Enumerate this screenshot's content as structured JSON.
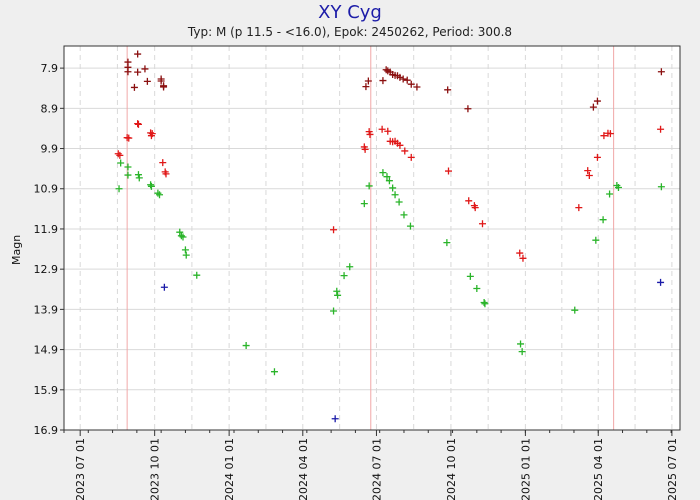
{
  "chart_data": {
    "type": "scatter",
    "title": "XY Cyg",
    "subtitle": "Typ: M (p 11.5 - <16.0), Epok: 2450262, Period: 300.8",
    "ylabel": "Magn",
    "xlabel": "",
    "ylim": [
      7.35,
      16.9
    ],
    "y_inverted": true,
    "y_ticks": [
      7.9,
      8.9,
      9.9,
      10.9,
      11.9,
      12.9,
      13.9,
      14.9,
      15.9,
      16.9
    ],
    "y_tick_labels": [
      "7.9",
      "8.9",
      "9.9",
      "10.9",
      "11.9",
      "12.9",
      "13.9",
      "14.9",
      "15.9",
      "16.9"
    ],
    "xlim": [
      "2023-06-11",
      "2025-07-11"
    ],
    "x_ticks": [
      "2023-07-01",
      "2023-10-01",
      "2024-01-01",
      "2024-04-01",
      "2024-07-01",
      "2024-10-01",
      "2025-01-01",
      "2025-04-01",
      "2025-07-01"
    ],
    "x_tick_labels": [
      "2023 07 01",
      "2023 10 01",
      "2024 01 01",
      "2024 04 01",
      "2024 07 01",
      "2024 10 01",
      "2025 01 01",
      "2025 04 01",
      "2025 07 01"
    ],
    "x_minor_interval_days": 30,
    "grid": true,
    "maxima_lines": [
      "2023-08-28",
      "2024-06-24",
      "2025-04-20"
    ],
    "colors": {
      "background": "#efefef",
      "plot_bg": "#ffffff",
      "grid": "#d9d9d9",
      "maxima_line": "#f1a8a8",
      "title": "#1c1ca8"
    },
    "series": [
      {
        "color": "#8b1010",
        "points": [
          [
            "2023-08-29",
            7.75
          ],
          [
            "2023-08-29",
            7.88
          ],
          [
            "2023-08-29",
            7.99
          ],
          [
            "2023-09-06",
            8.38
          ],
          [
            "2023-09-10",
            7.55
          ],
          [
            "2023-09-10",
            8.0
          ],
          [
            "2023-09-19",
            7.92
          ],
          [
            "2023-09-22",
            8.23
          ],
          [
            "2023-10-09",
            8.17
          ],
          [
            "2023-10-09",
            8.22
          ],
          [
            "2023-10-12",
            8.34
          ],
          [
            "2023-10-12",
            8.37
          ],
          [
            "2024-06-18",
            8.36
          ],
          [
            "2024-06-21",
            8.22
          ],
          [
            "2024-07-09",
            8.21
          ],
          [
            "2024-07-13",
            7.94
          ],
          [
            "2024-07-15",
            7.97
          ],
          [
            "2024-07-18",
            8.0
          ],
          [
            "2024-07-21",
            8.06
          ],
          [
            "2024-07-24",
            8.08
          ],
          [
            "2024-07-27",
            8.09
          ],
          [
            "2024-07-30",
            8.13
          ],
          [
            "2024-08-03",
            8.17
          ],
          [
            "2024-08-08",
            8.2
          ],
          [
            "2024-08-13",
            8.3
          ],
          [
            "2024-08-20",
            8.37
          ],
          [
            "2024-09-27",
            8.44
          ],
          [
            "2024-10-22",
            8.91
          ],
          [
            "2025-03-26",
            8.87
          ],
          [
            "2025-03-31",
            8.72
          ],
          [
            "2025-06-18",
            7.99
          ]
        ]
      },
      {
        "color": "#e01818",
        "points": [
          [
            "2023-08-17",
            10.03
          ],
          [
            "2023-08-19",
            10.07
          ],
          [
            "2023-08-28",
            9.63
          ],
          [
            "2023-08-30",
            9.64
          ],
          [
            "2023-09-10",
            9.28
          ],
          [
            "2023-09-11",
            9.3
          ],
          [
            "2023-09-26",
            9.51
          ],
          [
            "2023-09-27",
            9.58
          ],
          [
            "2023-09-28",
            9.53
          ],
          [
            "2023-10-11",
            10.25
          ],
          [
            "2023-10-14",
            10.48
          ],
          [
            "2023-10-15",
            10.53
          ],
          [
            "2024-05-09",
            11.92
          ],
          [
            "2024-06-16",
            9.86
          ],
          [
            "2024-06-17",
            9.92
          ],
          [
            "2024-06-22",
            9.48
          ],
          [
            "2024-06-23",
            9.55
          ],
          [
            "2024-07-08",
            9.42
          ],
          [
            "2024-07-15",
            9.47
          ],
          [
            "2024-07-18",
            9.72
          ],
          [
            "2024-07-21",
            9.73
          ],
          [
            "2024-07-24",
            9.72
          ],
          [
            "2024-07-27",
            9.77
          ],
          [
            "2024-07-30",
            9.82
          ],
          [
            "2024-08-05",
            9.96
          ],
          [
            "2024-08-13",
            10.12
          ],
          [
            "2024-09-28",
            10.46
          ],
          [
            "2024-10-23",
            11.2
          ],
          [
            "2024-10-30",
            11.32
          ],
          [
            "2024-10-31",
            11.37
          ],
          [
            "2024-11-09",
            11.77
          ],
          [
            "2024-12-25",
            12.5
          ],
          [
            "2024-12-29",
            12.63
          ],
          [
            "2025-03-08",
            11.37
          ],
          [
            "2025-03-19",
            10.45
          ],
          [
            "2025-03-21",
            10.57
          ],
          [
            "2025-03-31",
            10.12
          ],
          [
            "2025-04-08",
            9.58
          ],
          [
            "2025-04-13",
            9.52
          ],
          [
            "2025-04-16",
            9.53
          ],
          [
            "2025-06-17",
            9.42
          ]
        ]
      },
      {
        "color": "#2ab42a",
        "points": [
          [
            "2023-08-18",
            10.9
          ],
          [
            "2023-08-20",
            10.26
          ],
          [
            "2023-08-29",
            10.36
          ],
          [
            "2023-08-29",
            10.56
          ],
          [
            "2023-09-11",
            10.55
          ],
          [
            "2023-09-12",
            10.63
          ],
          [
            "2023-09-26",
            10.8
          ],
          [
            "2023-09-27",
            10.84
          ],
          [
            "2023-10-05",
            11.01
          ],
          [
            "2023-10-07",
            11.05
          ],
          [
            "2023-11-01",
            11.98
          ],
          [
            "2023-11-03",
            12.07
          ],
          [
            "2023-11-05",
            12.1
          ],
          [
            "2023-11-08",
            12.42
          ],
          [
            "2023-11-09",
            12.55
          ],
          [
            "2023-11-22",
            13.05
          ],
          [
            "2024-01-22",
            14.8
          ],
          [
            "2024-02-26",
            15.45
          ],
          [
            "2024-05-09",
            13.94
          ],
          [
            "2024-05-13",
            13.45
          ],
          [
            "2024-05-14",
            13.55
          ],
          [
            "2024-05-22",
            13.06
          ],
          [
            "2024-05-29",
            12.84
          ],
          [
            "2024-06-16",
            11.27
          ],
          [
            "2024-06-22",
            10.83
          ],
          [
            "2024-07-09",
            10.5
          ],
          [
            "2024-07-14",
            10.6
          ],
          [
            "2024-07-17",
            10.7
          ],
          [
            "2024-07-21",
            10.88
          ],
          [
            "2024-07-24",
            11.05
          ],
          [
            "2024-07-29",
            11.23
          ],
          [
            "2024-08-04",
            11.55
          ],
          [
            "2024-08-12",
            11.83
          ],
          [
            "2024-09-26",
            12.24
          ],
          [
            "2024-10-25",
            13.08
          ],
          [
            "2024-11-02",
            13.38
          ],
          [
            "2024-11-11",
            13.73
          ],
          [
            "2024-11-12",
            13.76
          ],
          [
            "2024-12-26",
            14.76
          ],
          [
            "2024-12-28",
            14.95
          ],
          [
            "2025-03-03",
            13.92
          ],
          [
            "2025-03-29",
            12.18
          ],
          [
            "2025-04-07",
            11.67
          ],
          [
            "2025-04-15",
            11.03
          ],
          [
            "2025-04-24",
            10.82
          ],
          [
            "2025-04-26",
            10.87
          ],
          [
            "2025-06-18",
            10.85
          ]
        ]
      },
      {
        "color": "#1a1aa8",
        "points": [
          [
            "2023-10-13",
            13.35
          ],
          [
            "2024-05-11",
            16.62
          ],
          [
            "2025-06-17",
            13.23
          ]
        ]
      }
    ]
  }
}
